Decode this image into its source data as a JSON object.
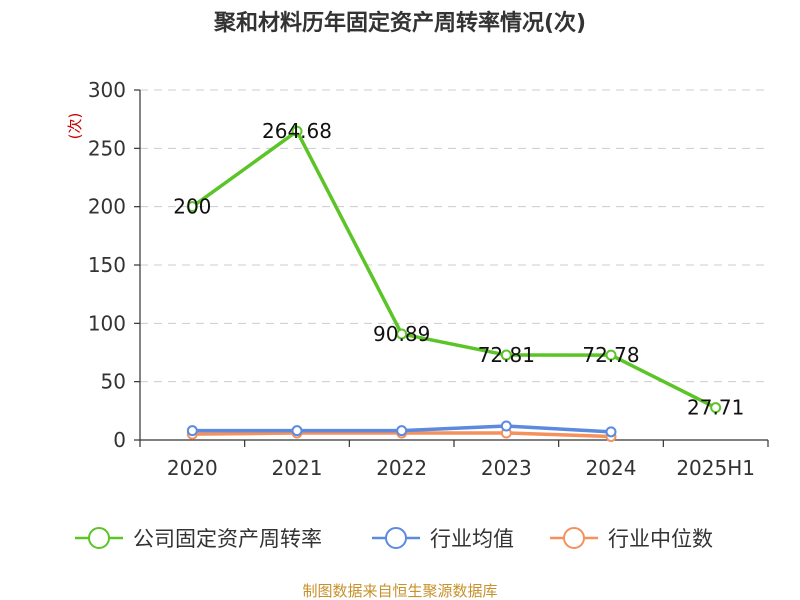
{
  "chart_data": {
    "type": "line",
    "title": "聚和材料历年固定资产周转率情况(次)",
    "ylabel": "(次)",
    "xlabel": "",
    "categories": [
      "2020",
      "2021",
      "2022",
      "2023",
      "2024",
      "2025H1"
    ],
    "ylim": [
      0,
      300
    ],
    "yticks": [
      0,
      50,
      100,
      150,
      200,
      250,
      300
    ],
    "grid": true,
    "legend_position": "bottom",
    "series": [
      {
        "name": "公司固定资产周转率",
        "values": [
          200,
          264.68,
          90.89,
          72.81,
          72.78,
          27.71
        ],
        "labels": [
          "200",
          "264.68",
          "90.89",
          "72.81",
          "72.78",
          "27.71"
        ],
        "color": "#5bc426"
      },
      {
        "name": "行业均值",
        "values": [
          8,
          8,
          8,
          12,
          7,
          null
        ],
        "color": "#5b8ae0"
      },
      {
        "name": "行业中位数",
        "values": [
          5,
          6,
          6,
          6,
          3,
          null
        ],
        "color": "#f4915c"
      }
    ],
    "source": "制图数据来自恒生聚源数据库"
  }
}
